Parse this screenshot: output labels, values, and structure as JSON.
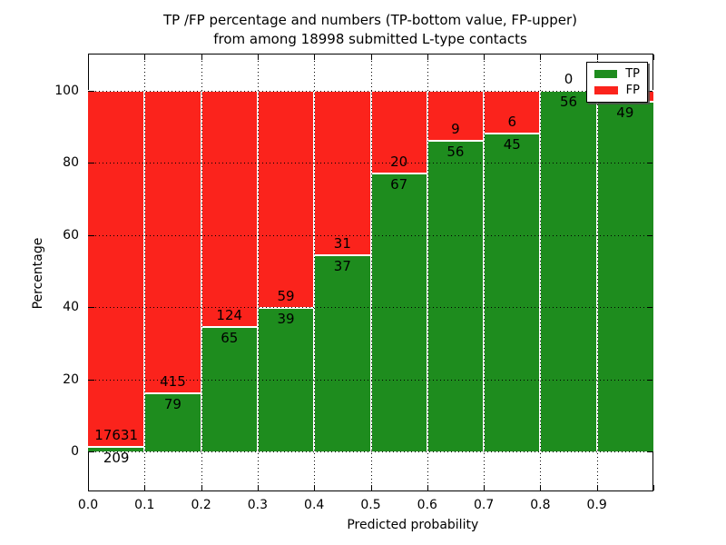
{
  "chart_data": {
    "type": "bar",
    "variant": "stacked-percentage-histogram",
    "title": "TP /FP percentage and numbers (TP-bottom value, FP-upper)",
    "subtitle": "from among 18998 submitted L-type contacts",
    "xlabel": "Predicted probability",
    "ylabel": "Percentage",
    "x_ticks": [
      "0.0",
      "0.1",
      "0.2",
      "0.3",
      "0.4",
      "0.5",
      "0.6",
      "0.7",
      "0.8",
      "0.9"
    ],
    "y_ticks": [
      0,
      20,
      40,
      60,
      80,
      100
    ],
    "xlim": [
      0,
      1
    ],
    "ylim": [
      -11,
      110
    ],
    "grid": "dotted-black",
    "colors": {
      "tp": "#1e8c1e",
      "fp": "#fb231c",
      "edge": "#ffffff"
    },
    "legend": {
      "position": "upper-right",
      "entries": [
        {
          "label": "TP",
          "color": "#1e8c1e"
        },
        {
          "label": "FP",
          "color": "#fb231c"
        }
      ]
    },
    "label_note": "TP count printed below segment boundary, FP count above it",
    "bins": [
      {
        "range": [
          0.0,
          0.1
        ],
        "tp": 209,
        "fp": 17631,
        "tp_pct": 1.2
      },
      {
        "range": [
          0.1,
          0.2
        ],
        "tp": 79,
        "fp": 415,
        "tp_pct": 16.0
      },
      {
        "range": [
          0.2,
          0.3
        ],
        "tp": 65,
        "fp": 124,
        "tp_pct": 34.4
      },
      {
        "range": [
          0.3,
          0.4
        ],
        "tp": 39,
        "fp": 59,
        "tp_pct": 39.8
      },
      {
        "range": [
          0.4,
          0.5
        ],
        "tp": 37,
        "fp": 31,
        "tp_pct": 54.4
      },
      {
        "range": [
          0.5,
          0.6
        ],
        "tp": 67,
        "fp": 20,
        "tp_pct": 77.0
      },
      {
        "range": [
          0.6,
          0.7
        ],
        "tp": 56,
        "fp": 9,
        "tp_pct": 86.2
      },
      {
        "range": [
          0.7,
          0.8
        ],
        "tp": 45,
        "fp": 6,
        "tp_pct": 88.2
      },
      {
        "range": [
          0.8,
          0.9
        ],
        "tp": 56,
        "fp": 0,
        "tp_pct": 100.0
      },
      {
        "range": [
          0.9,
          1.0
        ],
        "tp": 49,
        "fp": null,
        "tp_pct": 97.1
      }
    ]
  }
}
